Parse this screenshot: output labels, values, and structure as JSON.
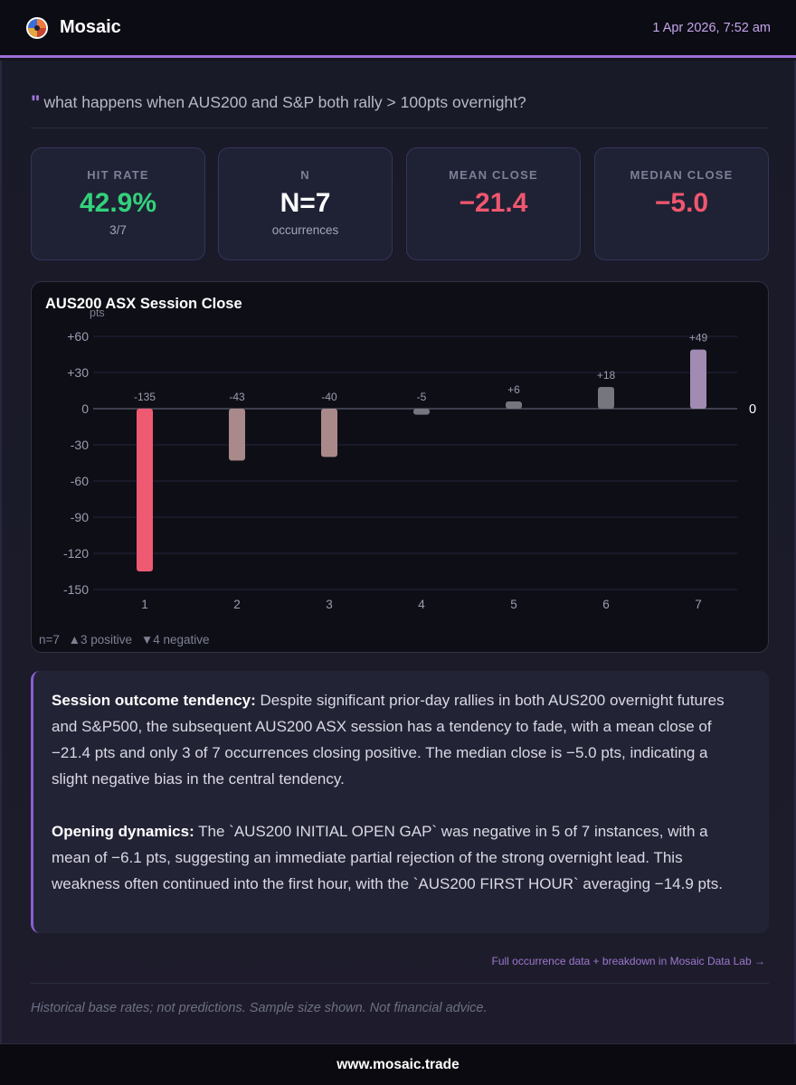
{
  "header": {
    "brand": "Mosaic",
    "timestamp": "1 Apr 2026, 7:52 am",
    "accent": "#9b6fd8"
  },
  "query": {
    "quote_mark": "\"",
    "text": "what happens when AUS200 and S&P both rally > 100pts overnight?"
  },
  "stats": [
    {
      "label": "HIT RATE",
      "value": "42.9%",
      "sub": "3/7",
      "color": "#34d17c"
    },
    {
      "label": "N",
      "value": "N=7",
      "sub": "occurrences",
      "color": "#ffffff"
    },
    {
      "label": "MEAN CLOSE",
      "value": "−21.4",
      "sub": "",
      "color": "#f0566f"
    },
    {
      "label": "MEDIAN CLOSE",
      "value": "−5.0",
      "sub": "",
      "color": "#f0566f"
    }
  ],
  "chart_data": {
    "type": "bar",
    "title": "AUS200 ASX Session Close",
    "ylabel": "pts",
    "xlabel": "",
    "categories": [
      "1",
      "2",
      "3",
      "4",
      "5",
      "6",
      "7"
    ],
    "values": [
      -135,
      -43,
      -40,
      -5,
      6,
      18,
      49
    ],
    "value_labels": [
      "-135",
      "-43",
      "-40",
      "-5",
      "+6",
      "+18",
      "+49"
    ],
    "y_ticks": [
      60,
      30,
      0,
      -30,
      -60,
      -90,
      -120,
      -150
    ],
    "y_tick_labels": [
      "+60",
      "+30",
      "0",
      "-30",
      "-60",
      "-90",
      "-120",
      "-150"
    ],
    "ylim": [
      -150,
      60
    ],
    "zero_line_label": "0",
    "grid": true,
    "colors": {
      "strong_negative": "#ef5a73",
      "negative": "#a98989",
      "small": "#76767f",
      "positive": "#a18bb3"
    }
  },
  "chart_footer": {
    "n": "n=7",
    "positive": "▲3 positive",
    "negative": "▼4 negative"
  },
  "analysis": {
    "p1_heading": "Session outcome tendency:",
    "p1_text": " Despite significant prior-day rallies in both AUS200 overnight futures and S&P500, the subsequent AUS200 ASX session has a tendency to fade, with a mean close of −21.4 pts and only 3 of 7 occurrences closing positive. The median close is −5.0 pts, indicating a slight negative bias in the central tendency.",
    "p2_heading": "Opening dynamics:",
    "p2_text": " The `AUS200 INITIAL OPEN GAP` was negative in 5 of 7 instances, with a mean of −6.1 pts, suggesting an immediate partial rejection of the strong overnight lead. This weakness often continued into the first hour, with the `AUS200 FIRST HOUR` averaging −14.9 pts."
  },
  "datalab_link": "Full occurrence data + breakdown in Mosaic Data Lab →",
  "disclaimer": "Historical base rates; not predictions. Sample size shown. Not financial advice.",
  "footer": {
    "site": "www.mosaic.trade"
  }
}
